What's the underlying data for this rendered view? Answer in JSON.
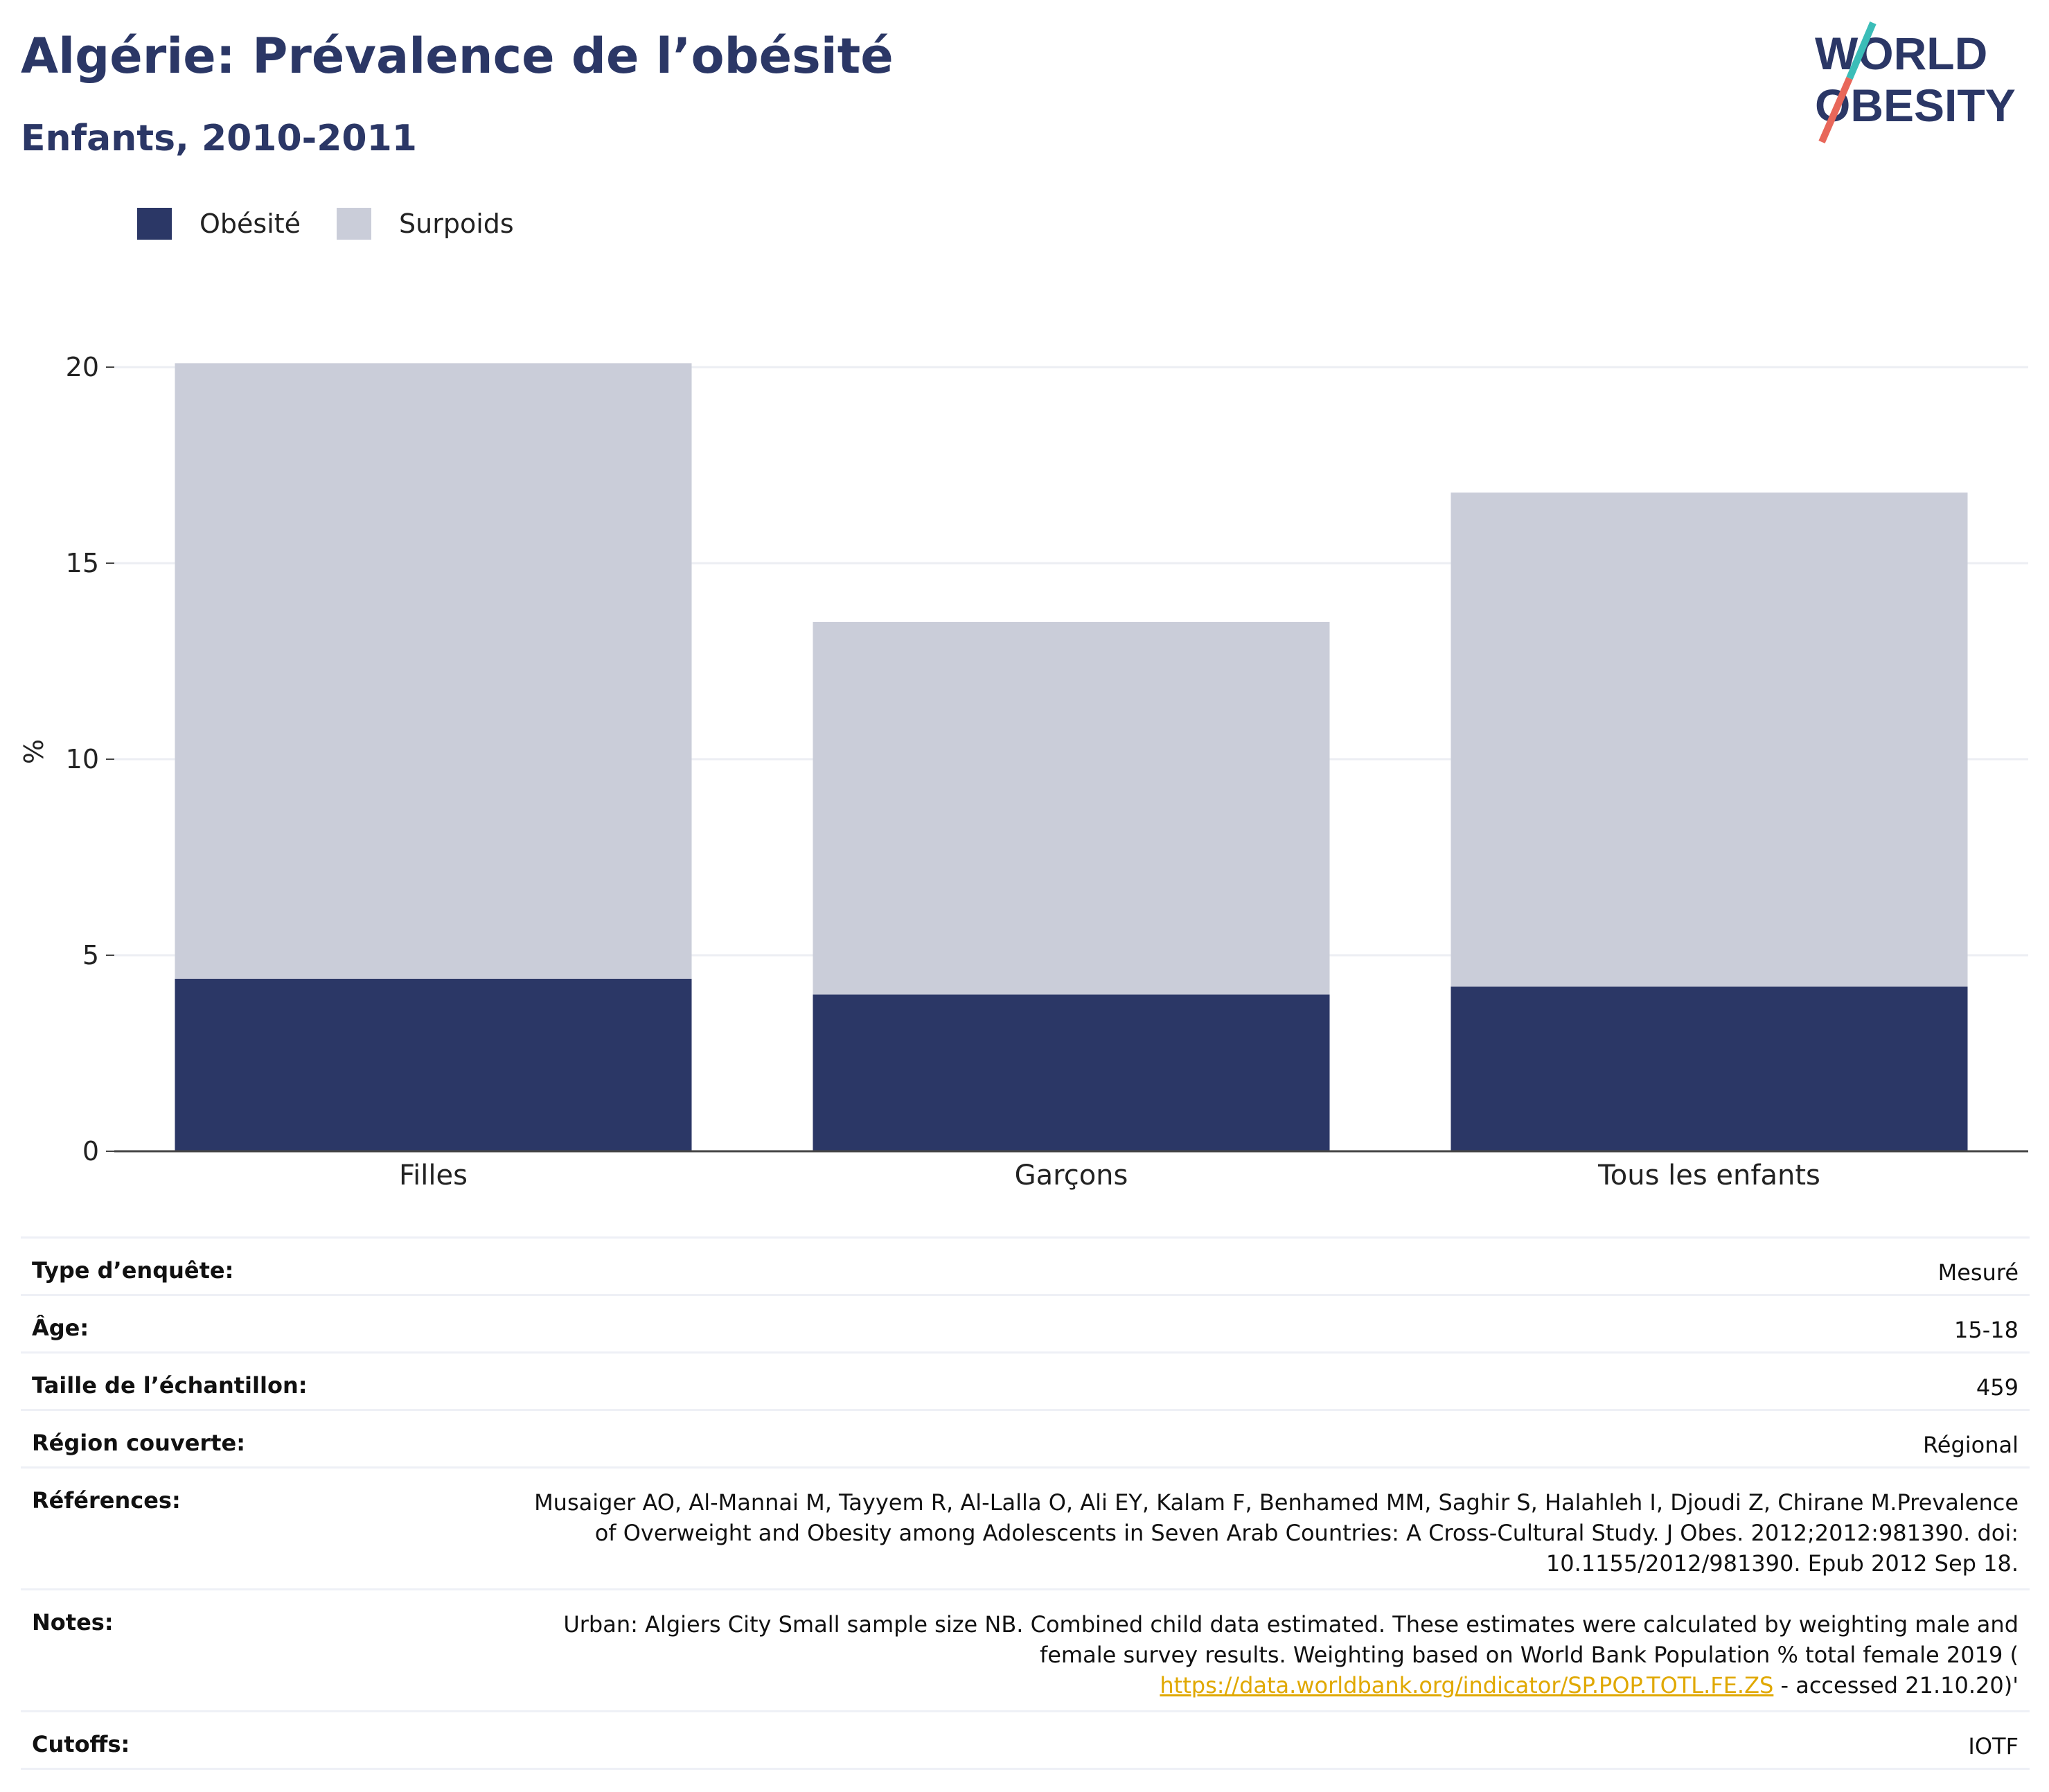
{
  "header": {
    "title": "Algérie: Prévalence de l’obésité",
    "subtitle": "Enfants, 2010-2011",
    "logo_line1": "WORLD",
    "logo_line2": "OBESITY"
  },
  "colors": {
    "obesity": "#2b3766",
    "overweight": "#cacdd9",
    "title": "#2b3766",
    "logo_teal": "#3bbdb8",
    "logo_coral": "#e8675a",
    "link": "#e0a800"
  },
  "chart_data": {
    "type": "bar",
    "stacked": true,
    "categories": [
      "Filles",
      "Garçons",
      "Tous les enfants"
    ],
    "series": [
      {
        "name": "Obésité",
        "values": [
          4.4,
          4.0,
          4.2
        ]
      },
      {
        "name": "Surpoids",
        "values": [
          15.7,
          9.5,
          12.6
        ]
      }
    ],
    "ylabel": "%",
    "xlabel": "",
    "ylim": [
      0,
      20
    ],
    "yticks": [
      0,
      5,
      10,
      15,
      20
    ],
    "grid": true,
    "legend_position": "top-left"
  },
  "metadata": [
    {
      "label": "Type d’enquête:",
      "value": "Mesuré"
    },
    {
      "label": "Âge:",
      "value": "15-18"
    },
    {
      "label": "Taille de l’échantillon:",
      "value": "459"
    },
    {
      "label": "Région couverte:",
      "value": "Régional"
    },
    {
      "label": "Références:",
      "value": "Musaiger AO, Al-Mannai M, Tayyem R, Al-Lalla O, Ali EY, Kalam F, Benhamed MM, Saghir S, Halahleh I, Djoudi Z, Chirane M.Prevalence of Overweight and Obesity among Adolescents in Seven Arab Countries: A Cross-Cultural Study. J Obes. 2012;2012:981390. doi: 10.1155/2012/981390. Epub 2012 Sep 18."
    },
    {
      "label": "Notes:",
      "value": "Urban: Algiers City Small sample size NB. Combined child data estimated. These estimates were calculated by weighting male and female survey results. Weighting based on World Bank Population % total female 2019 (",
      "link": "https://data.worldbank.org/indicator/SP.POP.TOTL.FE.ZS",
      "value_suffix": " - accessed 21.10.20)'"
    },
    {
      "label": "Cutoffs:",
      "value": "IOTF"
    }
  ]
}
